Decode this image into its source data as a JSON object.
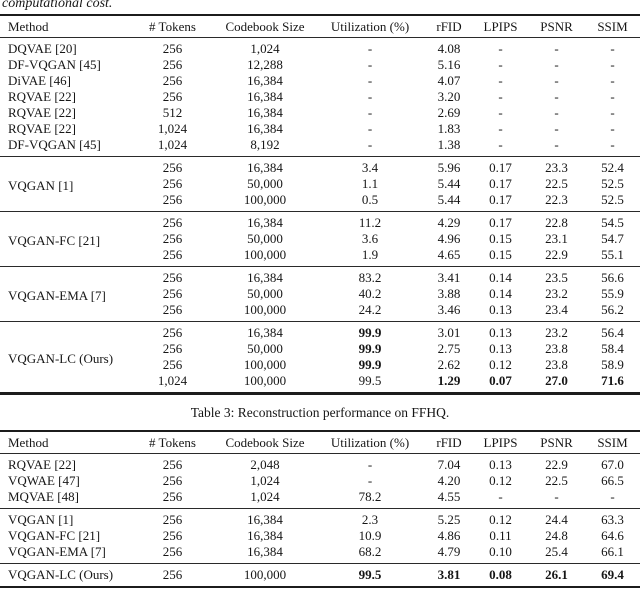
{
  "page": {
    "leading_text": "computational cost.",
    "caption": "Table 3: Reconstruction performance on FFHQ."
  },
  "columns": [
    "Method",
    "# Tokens",
    "Codebook Size",
    "Utilization (%)",
    "rFID",
    "LPIPS",
    "PSNR",
    "SSIM"
  ],
  "table1": {
    "groups": [
      {
        "rows": [
          [
            "DQVAE [20]",
            "256",
            "1,024",
            "-",
            "4.08",
            "-",
            "-",
            "-"
          ],
          [
            "DF-VQGAN [45]",
            "256",
            "12,288",
            "-",
            "5.16",
            "-",
            "-",
            "-"
          ],
          [
            "DiVAE [46]",
            "256",
            "16,384",
            "-",
            "4.07",
            "-",
            "-",
            "-"
          ],
          [
            "RQVAE [22]",
            "256",
            "16,384",
            "-",
            "3.20",
            "-",
            "-",
            "-"
          ],
          [
            "RQVAE [22]",
            "512",
            "16,384",
            "-",
            "2.69",
            "-",
            "-",
            "-"
          ],
          [
            "RQVAE [22]",
            "1,024",
            "16,384",
            "-",
            "1.83",
            "-",
            "-",
            "-"
          ],
          [
            "DF-VQGAN [45]",
            "1,024",
            "8,192",
            "-",
            "1.38",
            "-",
            "-",
            "-"
          ]
        ]
      },
      {
        "method": "VQGAN [1]",
        "rows": [
          [
            "256",
            "16,384",
            "3.4",
            "5.96",
            "0.17",
            "23.3",
            "52.4"
          ],
          [
            "256",
            "50,000",
            "1.1",
            "5.44",
            "0.17",
            "22.5",
            "52.5"
          ],
          [
            "256",
            "100,000",
            "0.5",
            "5.44",
            "0.17",
            "22.3",
            "52.5"
          ]
        ]
      },
      {
        "method": "VQGAN-FC [21]",
        "rows": [
          [
            "256",
            "16,384",
            "11.2",
            "4.29",
            "0.17",
            "22.8",
            "54.5"
          ],
          [
            "256",
            "50,000",
            "3.6",
            "4.96",
            "0.15",
            "23.1",
            "54.7"
          ],
          [
            "256",
            "100,000",
            "1.9",
            "4.65",
            "0.15",
            "22.9",
            "55.1"
          ]
        ]
      },
      {
        "method": "VQGAN-EMA [7]",
        "rows": [
          [
            "256",
            "16,384",
            "83.2",
            "3.41",
            "0.14",
            "23.5",
            "56.6"
          ],
          [
            "256",
            "50,000",
            "40.2",
            "3.88",
            "0.14",
            "23.2",
            "55.9"
          ],
          [
            "256",
            "100,000",
            "24.2",
            "3.46",
            "0.13",
            "23.4",
            "56.2"
          ]
        ]
      },
      {
        "method": "VQGAN-LC (Ours)",
        "rows": [
          [
            "256",
            "16,384",
            {
              "t": "99.9",
              "b": true
            },
            "3.01",
            "0.13",
            "23.2",
            "56.4"
          ],
          [
            "256",
            "50,000",
            {
              "t": "99.9",
              "b": true
            },
            "2.75",
            "0.13",
            "23.8",
            "58.4"
          ],
          [
            "256",
            "100,000",
            {
              "t": "99.9",
              "b": true
            },
            "2.62",
            "0.12",
            "23.8",
            "58.9"
          ],
          [
            "1,024",
            "100,000",
            "99.5",
            {
              "t": "1.29",
              "b": true
            },
            {
              "t": "0.07",
              "b": true
            },
            {
              "t": "27.0",
              "b": true
            },
            {
              "t": "71.6",
              "b": true
            }
          ]
        ]
      }
    ]
  },
  "table2": {
    "groups": [
      {
        "rows": [
          [
            "RQVAE [22]",
            "256",
            "2,048",
            "-",
            "7.04",
            "0.13",
            "22.9",
            "67.0"
          ],
          [
            "VQWAE [47]",
            "256",
            "1,024",
            "-",
            "4.20",
            "0.12",
            "22.5",
            "66.5"
          ],
          [
            "MQVAE [48]",
            "256",
            "1,024",
            "78.2",
            "4.55",
            "-",
            "-",
            "-"
          ]
        ]
      },
      {
        "rows": [
          [
            "VQGAN [1]",
            "256",
            "16,384",
            "2.3",
            "5.25",
            "0.12",
            "24.4",
            "63.3"
          ],
          [
            "VQGAN-FC [21]",
            "256",
            "16,384",
            "10.9",
            "4.86",
            "0.11",
            "24.8",
            "64.6"
          ],
          [
            "VQGAN-EMA [7]",
            "256",
            "16,384",
            "68.2",
            "4.79",
            "0.10",
            "25.4",
            "66.1"
          ]
        ]
      },
      {
        "rows": [
          [
            "VQGAN-LC (Ours)",
            "256",
            "100,000",
            {
              "t": "99.5",
              "b": true
            },
            {
              "t": "3.81",
              "b": true
            },
            {
              "t": "0.08",
              "b": true
            },
            {
              "t": "26.1",
              "b": true
            },
            {
              "t": "69.4",
              "b": true
            }
          ]
        ]
      }
    ]
  }
}
